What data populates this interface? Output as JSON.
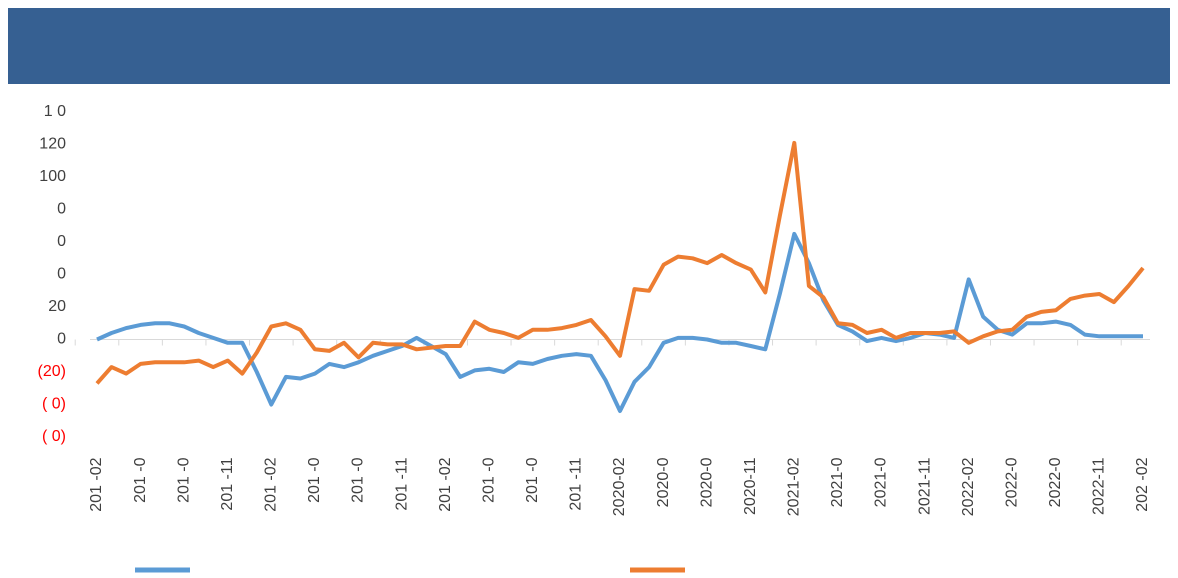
{
  "chart_data": {
    "type": "line",
    "categories": [
      "201 -02",
      null,
      null,
      "201 -0",
      null,
      null,
      "201 -0",
      null,
      null,
      "201 -11",
      null,
      null,
      "201 -02",
      null,
      null,
      "201 -0",
      null,
      null,
      "201 -0",
      null,
      null,
      "201 -11",
      null,
      null,
      "201 -02",
      null,
      null,
      "201 -0",
      null,
      null,
      "201 -0",
      null,
      null,
      "201 -11",
      null,
      null,
      "2020-02",
      null,
      null,
      "2020-0",
      null,
      null,
      "2020-0",
      null,
      null,
      "2020-11",
      null,
      null,
      "2021-02",
      null,
      null,
      "2021-0",
      null,
      null,
      "2021-0",
      null,
      null,
      "2021-11",
      null,
      null,
      "2022-02",
      null,
      null,
      "2022-0",
      null,
      null,
      "2022-0",
      null,
      null,
      "2022-11",
      null,
      null,
      "202 -02"
    ],
    "series": [
      {
        "color": "#5b9bd5",
        "values": [
          0,
          4,
          7,
          9,
          10,
          10,
          8,
          4,
          1,
          -2,
          -2,
          -20,
          -40,
          -23,
          -24,
          -21,
          -15,
          -17,
          -14,
          -10,
          -7,
          -4,
          1,
          -4,
          -9,
          -23,
          -19,
          -18,
          -20,
          -14,
          -15,
          -12,
          -10,
          -9,
          -10,
          -25,
          -44,
          -26,
          -17,
          -2,
          1,
          1,
          0,
          -2,
          -2,
          -4,
          -6,
          28,
          65,
          47,
          24,
          9,
          5,
          -1,
          1,
          -1,
          1,
          4,
          3,
          1,
          37,
          14,
          6,
          3,
          10,
          10,
          11,
          9,
          3,
          2,
          2,
          2,
          2
        ]
      },
      {
        "color": "#ed7d31",
        "values": [
          -27,
          -17,
          -21,
          -15,
          -14,
          -14,
          -14,
          -13,
          -17,
          -13,
          -21,
          -8,
          8,
          10,
          6,
          -6,
          -7,
          -2,
          -11,
          -2,
          -3,
          -3,
          -6,
          -5,
          -4,
          -4,
          11,
          6,
          4,
          1,
          6,
          6,
          7,
          9,
          12,
          2,
          -10,
          31,
          30,
          46,
          51,
          50,
          47,
          52,
          47,
          43,
          29,
          76,
          121,
          33,
          26,
          10,
          9,
          4,
          6,
          1,
          4,
          4,
          4,
          5,
          -2,
          2,
          5,
          6,
          14,
          17,
          18,
          25,
          27,
          28,
          23,
          33,
          44
        ]
      }
    ],
    "ylim": [
      -60,
      140
    ],
    "yticks": [
      {
        "value": -60,
        "label": "( 0)"
      },
      {
        "value": -40,
        "label": "( 0)"
      },
      {
        "value": -20,
        "label": "(20)"
      },
      0,
      20,
      {
        "value": 40,
        "label": "0"
      },
      {
        "value": 60,
        "label": "0"
      },
      {
        "value": 80,
        "label": "0"
      },
      100,
      120,
      {
        "value": 140,
        "label": "1 0"
      }
    ],
    "negative_label_color": "#ff0000",
    "header_color": "#366092"
  }
}
